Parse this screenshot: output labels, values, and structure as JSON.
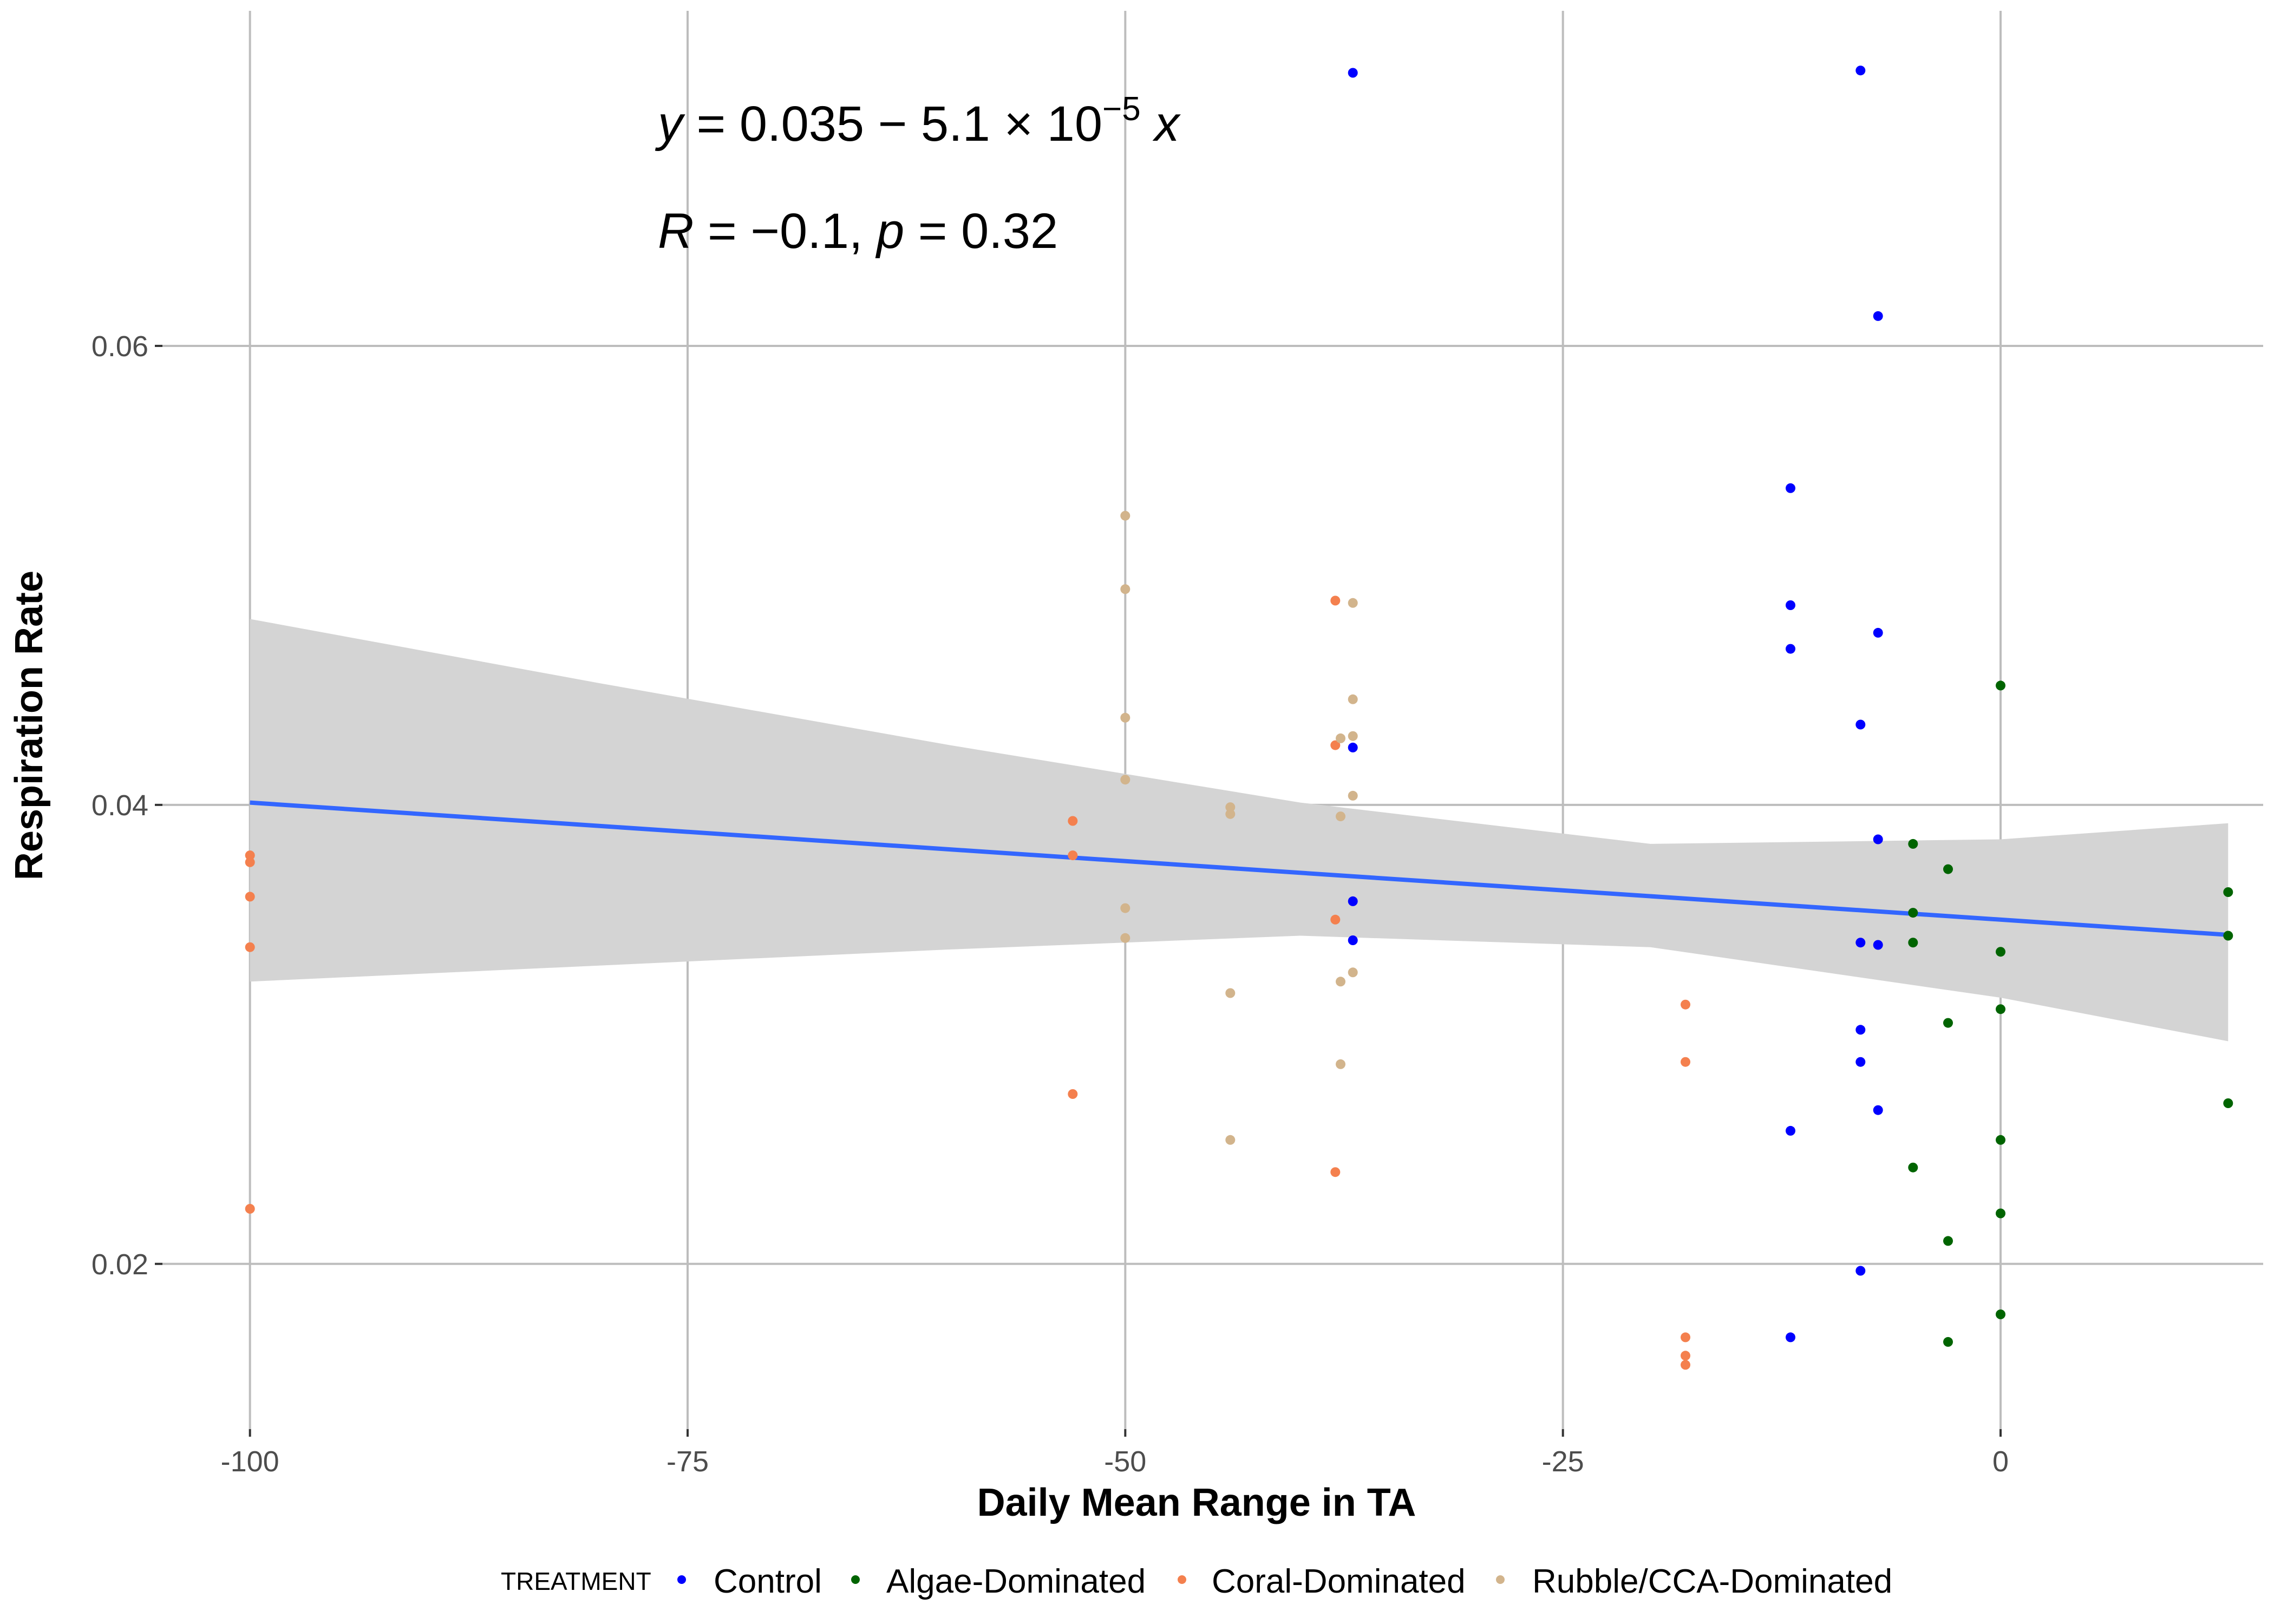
{
  "chart_data": {
    "type": "scatter",
    "xlabel": "Daily Mean Range in TA",
    "ylabel": "Respiration Rate",
    "xlim": [
      -105,
      15
    ],
    "ylim": [
      0.0128,
      0.0746
    ],
    "x_ticks": [
      -100,
      -75,
      -50,
      -25,
      0
    ],
    "x_tick_labels": [
      "-100",
      "-75",
      "-50",
      "-25",
      "0"
    ],
    "y_ticks": [
      0.02,
      0.04,
      0.06
    ],
    "y_tick_labels": [
      "0.02",
      "0.04",
      "0.06"
    ],
    "grid": true,
    "legend": {
      "title": "TREATMENT",
      "position": "bottom",
      "entries": [
        "Control",
        "Algae-Dominated",
        "Coral-Dominated",
        "Rubble/CCA-Dominated"
      ]
    },
    "annotation": {
      "equation": {
        "y": "y",
        "eq": " = 0.035 − 5.1 × 10",
        "exp": "−5",
        "x": " x"
      },
      "stats": {
        "R": "R",
        "r_eq": " = −0.1, ",
        "p": "p",
        "p_eq": " = 0.32"
      }
    },
    "regression": {
      "color": "#3366ff",
      "x_range": [
        -100,
        13
      ],
      "intercept": 0.035,
      "slope": -5.1e-05,
      "band_color": "#d4d4d4",
      "band": [
        {
          "x": -100,
          "lower": 0.0323,
          "upper": 0.0481
        },
        {
          "x": -80,
          "lower": 0.033,
          "upper": 0.0453
        },
        {
          "x": -60,
          "lower": 0.0337,
          "upper": 0.0426
        },
        {
          "x": -40,
          "lower": 0.0343,
          "upper": 0.0401
        },
        {
          "x": -20,
          "lower": 0.0338,
          "upper": 0.0383
        },
        {
          "x": 0,
          "lower": 0.0316,
          "upper": 0.0385
        },
        {
          "x": 13,
          "lower": 0.0297,
          "upper": 0.0392
        }
      ]
    },
    "series": [
      {
        "name": "Control",
        "color": "#0000ff",
        "points": [
          [
            -37,
            0.0719
          ],
          [
            -37,
            0.0425
          ],
          [
            -37,
            0.0358
          ],
          [
            -37,
            0.0341
          ],
          [
            -12,
            0.0538
          ],
          [
            -12,
            0.0487
          ],
          [
            -12,
            0.0468
          ],
          [
            -12,
            0.0258
          ],
          [
            -12,
            0.0168
          ],
          [
            -8,
            0.072
          ],
          [
            -8,
            0.0435
          ],
          [
            -8,
            0.034
          ],
          [
            -8,
            0.0302
          ],
          [
            -8,
            0.0288
          ],
          [
            -8,
            0.0197
          ],
          [
            -7,
            0.0613
          ],
          [
            -7,
            0.0475
          ],
          [
            -7,
            0.0385
          ],
          [
            -7,
            0.0339
          ],
          [
            -7,
            0.0267
          ]
        ]
      },
      {
        "name": "Algae-Dominated",
        "color": "#006400",
        "points": [
          [
            -5,
            0.0383
          ],
          [
            -5,
            0.0353
          ],
          [
            -5,
            0.034
          ],
          [
            -5,
            0.0242
          ],
          [
            -3,
            0.0372
          ],
          [
            -3,
            0.0305
          ],
          [
            -3,
            0.021
          ],
          [
            -3,
            0.0166
          ],
          [
            0,
            0.0452
          ],
          [
            0,
            0.0336
          ],
          [
            0,
            0.0311
          ],
          [
            0,
            0.0254
          ],
          [
            0,
            0.0222
          ],
          [
            0,
            0.0178
          ],
          [
            13,
            0.0362
          ],
          [
            13,
            0.0343
          ],
          [
            13,
            0.027
          ]
        ]
      },
      {
        "name": "Coral-Dominated",
        "color": "#f4804e",
        "points": [
          [
            -100,
            0.0378
          ],
          [
            -100,
            0.0375
          ],
          [
            -100,
            0.036
          ],
          [
            -100,
            0.0338
          ],
          [
            -100,
            0.0224
          ],
          [
            -53,
            0.0393
          ],
          [
            -53,
            0.0378
          ],
          [
            -53,
            0.0274
          ],
          [
            -38,
            0.0489
          ],
          [
            -38,
            0.0426
          ],
          [
            -38,
            0.035
          ],
          [
            -38,
            0.024
          ],
          [
            -18,
            0.0313
          ],
          [
            -18,
            0.0288
          ],
          [
            -18,
            0.0168
          ],
          [
            -18,
            0.016
          ],
          [
            -18,
            0.0156
          ]
        ]
      },
      {
        "name": "Rubble/CCA-Dominated",
        "color": "#d2b48c",
        "points": [
          [
            -50,
            0.0526
          ],
          [
            -50,
            0.0494
          ],
          [
            -50,
            0.0438
          ],
          [
            -50,
            0.0411
          ],
          [
            -50,
            0.0355
          ],
          [
            -50,
            0.0342
          ],
          [
            -44,
            0.0399
          ],
          [
            -44,
            0.0396
          ],
          [
            -44,
            0.0318
          ],
          [
            -44,
            0.0254
          ],
          [
            -37.7,
            0.0429
          ],
          [
            -37.7,
            0.0395
          ],
          [
            -37.7,
            0.0323
          ],
          [
            -37.7,
            0.0287
          ],
          [
            -37,
            0.0488
          ],
          [
            -37,
            0.0446
          ],
          [
            -37,
            0.043
          ],
          [
            -37,
            0.0404
          ],
          [
            -37,
            0.0327
          ]
        ]
      }
    ]
  }
}
